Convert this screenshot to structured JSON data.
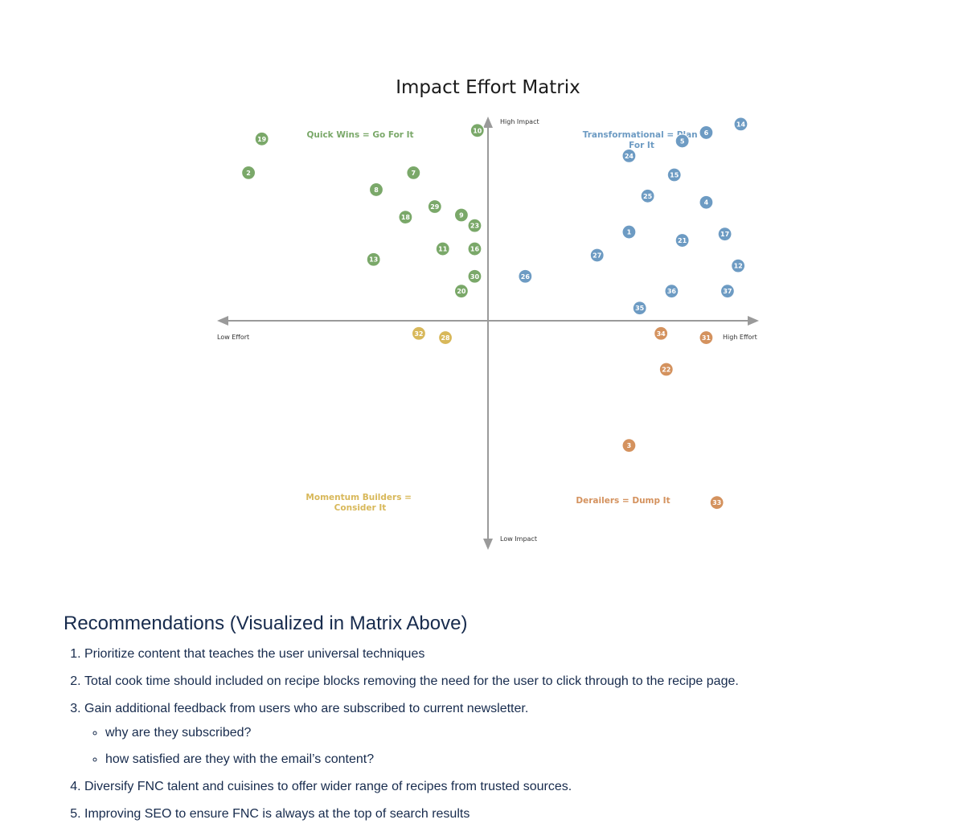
{
  "chart_data": {
    "type": "scatter",
    "title": "Impact Effort Matrix",
    "axis_labels": {
      "x_low": "Low Effort",
      "x_high": "High Effort",
      "y_high": "High Impact",
      "y_low": "Low Impact"
    },
    "xlim": [
      -10,
      10
    ],
    "ylim": [
      -10,
      10
    ],
    "grid": false,
    "quadrants": [
      {
        "name": "quick_wins",
        "lines": [
          "Quick Wins = Go For It"
        ],
        "color": "#7aa869"
      },
      {
        "name": "transformational",
        "lines": [
          "Transformational = Plan",
          "For It"
        ],
        "color": "#6d9bc3"
      },
      {
        "name": "momentum",
        "lines": [
          "Momentum Builders =",
          "Consider It"
        ],
        "color": "#d8b85a"
      },
      {
        "name": "derailers",
        "lines": [
          "Derailers = Dump It"
        ],
        "color": "#d4925e"
      }
    ],
    "colors": {
      "quick_wins": "#7aa869",
      "transformational": "#6d9bc3",
      "momentum": "#d8b85a",
      "derailers": "#d4925e",
      "axis": "#9a9a9a"
    },
    "points": [
      {
        "id": "19",
        "x": -8.5,
        "y": 8.6,
        "group": "quick_wins"
      },
      {
        "id": "2",
        "x": -9.0,
        "y": 7.0,
        "group": "quick_wins"
      },
      {
        "id": "10",
        "x": -0.4,
        "y": 9.0,
        "group": "quick_wins"
      },
      {
        "id": "7",
        "x": -2.8,
        "y": 7.0,
        "group": "quick_wins"
      },
      {
        "id": "8",
        "x": -4.2,
        "y": 6.2,
        "group": "quick_wins"
      },
      {
        "id": "29",
        "x": -2.0,
        "y": 5.4,
        "group": "quick_wins"
      },
      {
        "id": "9",
        "x": -1.0,
        "y": 5.0,
        "group": "quick_wins"
      },
      {
        "id": "18",
        "x": -3.1,
        "y": 4.9,
        "group": "quick_wins"
      },
      {
        "id": "23",
        "x": -0.5,
        "y": 4.5,
        "group": "quick_wins"
      },
      {
        "id": "11",
        "x": -1.7,
        "y": 3.4,
        "group": "quick_wins"
      },
      {
        "id": "16",
        "x": -0.5,
        "y": 3.4,
        "group": "quick_wins"
      },
      {
        "id": "13",
        "x": -4.3,
        "y": 2.9,
        "group": "quick_wins"
      },
      {
        "id": "30",
        "x": -0.5,
        "y": 2.1,
        "group": "quick_wins"
      },
      {
        "id": "20",
        "x": -1.0,
        "y": 1.4,
        "group": "quick_wins"
      },
      {
        "id": "14",
        "x": 9.5,
        "y": 9.3,
        "group": "transformational"
      },
      {
        "id": "6",
        "x": 8.2,
        "y": 8.9,
        "group": "transformational"
      },
      {
        "id": "5",
        "x": 7.3,
        "y": 8.5,
        "group": "transformational"
      },
      {
        "id": "24",
        "x": 5.3,
        "y": 7.8,
        "group": "transformational"
      },
      {
        "id": "15",
        "x": 7.0,
        "y": 6.9,
        "group": "transformational"
      },
      {
        "id": "25",
        "x": 6.0,
        "y": 5.9,
        "group": "transformational"
      },
      {
        "id": "4",
        "x": 8.2,
        "y": 5.6,
        "group": "transformational"
      },
      {
        "id": "1",
        "x": 5.3,
        "y": 4.2,
        "group": "transformational"
      },
      {
        "id": "17",
        "x": 8.9,
        "y": 4.1,
        "group": "transformational"
      },
      {
        "id": "21",
        "x": 7.3,
        "y": 3.8,
        "group": "transformational"
      },
      {
        "id": "27",
        "x": 4.1,
        "y": 3.1,
        "group": "transformational"
      },
      {
        "id": "12",
        "x": 9.4,
        "y": 2.6,
        "group": "transformational"
      },
      {
        "id": "26",
        "x": 1.4,
        "y": 2.1,
        "group": "transformational"
      },
      {
        "id": "36",
        "x": 6.9,
        "y": 1.4,
        "group": "transformational"
      },
      {
        "id": "37",
        "x": 9.0,
        "y": 1.4,
        "group": "transformational"
      },
      {
        "id": "35",
        "x": 5.7,
        "y": 0.6,
        "group": "transformational"
      },
      {
        "id": "32",
        "x": -2.6,
        "y": -0.6,
        "group": "momentum"
      },
      {
        "id": "28",
        "x": -1.6,
        "y": -0.8,
        "group": "momentum"
      },
      {
        "id": "34",
        "x": 6.5,
        "y": -0.6,
        "group": "derailers"
      },
      {
        "id": "31",
        "x": 8.2,
        "y": -0.8,
        "group": "derailers"
      },
      {
        "id": "22",
        "x": 6.7,
        "y": -2.3,
        "group": "derailers"
      },
      {
        "id": "3",
        "x": 5.3,
        "y": -5.9,
        "group": "derailers"
      },
      {
        "id": "33",
        "x": 8.6,
        "y": -8.6,
        "group": "derailers"
      }
    ]
  },
  "recommendations": {
    "heading": "Recommendations (Visualized in Matrix Above)",
    "items": [
      "Prioritize content that teaches the user universal techniques",
      "Total cook time should included on recipe blocks removing the need for the user to click through to the recipe page.",
      "Gain additional feedback from users who are subscribed to current newsletter.",
      "Diversify FNC talent and cuisines to offer wider range of recipes from trusted sources.",
      "Improving SEO to ensure FNC is always at the top of search results"
    ],
    "sub_items": [
      "why are they subscribed?",
      "how satisfied are they with the email’s content?"
    ]
  }
}
